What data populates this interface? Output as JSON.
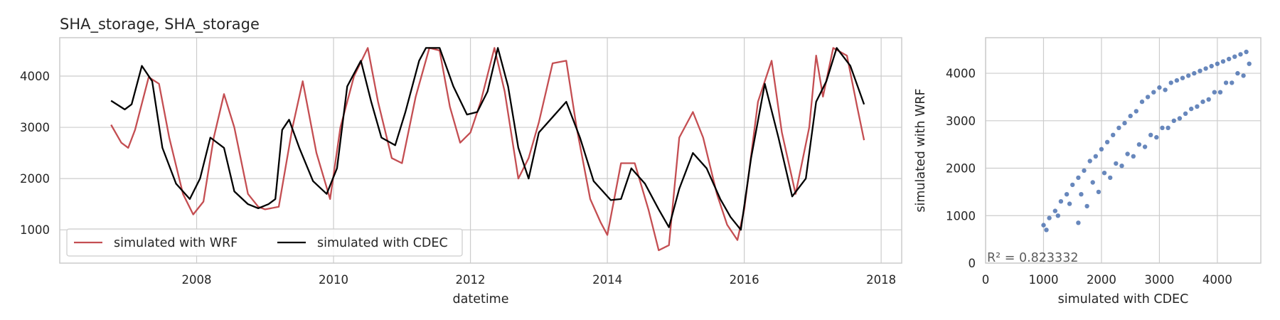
{
  "chart_data": [
    {
      "type": "line",
      "title": "SHA_storage, SHA_storage",
      "xlabel": "datetime",
      "ylabel": "",
      "xlim": [
        2006.0,
        2018.3
      ],
      "ylim": [
        350,
        4750
      ],
      "x_ticks": [
        2008,
        2010,
        2012,
        2014,
        2016,
        2018
      ],
      "y_ticks": [
        1000,
        2000,
        3000,
        4000
      ],
      "grid": true,
      "legend": {
        "location": "bottom-left",
        "entries": [
          "simulated with WRF",
          "simulated with CDEC"
        ]
      },
      "series": [
        {
          "name": "simulated with WRF",
          "color": "#c44e52",
          "x": [
            2006.75,
            2006.9,
            2007.0,
            2007.1,
            2007.3,
            2007.45,
            2007.6,
            2007.8,
            2007.95,
            2008.1,
            2008.25,
            2008.4,
            2008.55,
            2008.75,
            2008.9,
            2009.0,
            2009.2,
            2009.4,
            2009.55,
            2009.75,
            2009.95,
            2010.1,
            2010.3,
            2010.5,
            2010.65,
            2010.85,
            2011.0,
            2011.2,
            2011.4,
            2011.55,
            2011.7,
            2011.85,
            2012.0,
            2012.15,
            2012.35,
            2012.5,
            2012.7,
            2012.85,
            2013.0,
            2013.2,
            2013.4,
            2013.55,
            2013.75,
            2013.9,
            2014.0,
            2014.2,
            2014.4,
            2014.6,
            2014.75,
            2014.9,
            2015.05,
            2015.25,
            2015.4,
            2015.6,
            2015.75,
            2015.9,
            2016.0,
            2016.2,
            2016.4,
            2016.55,
            2016.75,
            2016.95,
            2017.05,
            2017.15,
            2017.3,
            2017.5,
            2017.65,
            2017.75
          ],
          "values": [
            3050,
            2700,
            2600,
            2950,
            3980,
            3850,
            2800,
            1700,
            1300,
            1550,
            2800,
            3650,
            3000,
            1700,
            1450,
            1400,
            1450,
            3000,
            3900,
            2500,
            1600,
            3000,
            4000,
            4550,
            3500,
            2400,
            2300,
            3600,
            4550,
            4500,
            3400,
            2700,
            2900,
            3500,
            4550,
            3700,
            2000,
            2400,
            3100,
            4250,
            4300,
            3000,
            1600,
            1150,
            900,
            2300,
            2300,
            1400,
            600,
            700,
            2800,
            3300,
            2800,
            1700,
            1100,
            800,
            1400,
            3500,
            4300,
            2900,
            1700,
            3000,
            4400,
            3600,
            4550,
            4400,
            3400,
            2750
          ]
        },
        {
          "name": "simulated with CDEC",
          "color": "#000000",
          "x": [
            2006.75,
            2006.95,
            2007.05,
            2007.2,
            2007.35,
            2007.5,
            2007.7,
            2007.9,
            2008.05,
            2008.2,
            2008.4,
            2008.55,
            2008.75,
            2008.9,
            2009.05,
            2009.15,
            2009.25,
            2009.35,
            2009.5,
            2009.7,
            2009.9,
            2010.05,
            2010.2,
            2010.4,
            2010.55,
            2010.7,
            2010.9,
            2011.05,
            2011.25,
            2011.35,
            2011.55,
            2011.75,
            2011.95,
            2012.1,
            2012.25,
            2012.4,
            2012.55,
            2012.7,
            2012.85,
            2013.0,
            2013.2,
            2013.4,
            2013.6,
            2013.8,
            2014.05,
            2014.2,
            2014.35,
            2014.55,
            2014.75,
            2014.9,
            2015.05,
            2015.25,
            2015.45,
            2015.65,
            2015.8,
            2015.95,
            2016.1,
            2016.3,
            2016.5,
            2016.7,
            2016.9,
            2017.05,
            2017.2,
            2017.35,
            2017.55,
            2017.75
          ],
          "values": [
            3520,
            3350,
            3450,
            4200,
            3900,
            2600,
            1900,
            1600,
            2000,
            2800,
            2600,
            1750,
            1500,
            1420,
            1500,
            1600,
            2950,
            3150,
            2600,
            1950,
            1700,
            2200,
            3800,
            4300,
            3500,
            2800,
            2650,
            3300,
            4300,
            4550,
            4550,
            3800,
            3250,
            3300,
            3700,
            4550,
            3800,
            2600,
            2000,
            2900,
            3200,
            3500,
            2800,
            1950,
            1580,
            1600,
            2200,
            1900,
            1400,
            1050,
            1800,
            2500,
            2200,
            1600,
            1250,
            1000,
            2400,
            3850,
            2800,
            1650,
            2000,
            3500,
            3900,
            4550,
            4200,
            3450
          ]
        }
      ]
    },
    {
      "type": "scatter",
      "title": "",
      "xlabel": "simulated with CDEC",
      "ylabel": "simulated with WRF",
      "xlim": [
        0,
        4750
      ],
      "ylim": [
        0,
        4750
      ],
      "x_ticks": [
        0,
        1000,
        2000,
        3000,
        4000
      ],
      "y_ticks": [
        0,
        1000,
        2000,
        3000,
        4000
      ],
      "grid": true,
      "color": "#4c72b0",
      "annotation": "R² = 0.823332",
      "x": [
        1000,
        1100,
        1200,
        1300,
        1400,
        1500,
        1600,
        1700,
        1800,
        1900,
        2000,
        2100,
        2200,
        2300,
        2400,
        2500,
        2600,
        2700,
        2800,
        2900,
        3000,
        3100,
        3200,
        3300,
        3400,
        3500,
        3600,
        3700,
        3800,
        3900,
        4000,
        4100,
        4200,
        4300,
        4400,
        4500,
        1050,
        1250,
        1450,
        1650,
        1850,
        2050,
        2250,
        2450,
        2650,
        2850,
        3050,
        3250,
        3450,
        3650,
        3850,
        4050,
        4250,
        4450,
        1600,
        1750,
        1950,
        2150,
        2350,
        2550,
        2750,
        2950,
        3150,
        3350,
        3550,
        3750,
        3950,
        4150,
        4350,
        4550
      ],
      "values": [
        800,
        950,
        1100,
        1300,
        1450,
        1650,
        1800,
        1950,
        2150,
        2250,
        2400,
        2550,
        2700,
        2850,
        2950,
        3100,
        3200,
        3400,
        3500,
        3600,
        3700,
        3650,
        3800,
        3850,
        3900,
        3950,
        4000,
        4050,
        4100,
        4150,
        4200,
        4250,
        4300,
        4350,
        4400,
        4450,
        700,
        1000,
        1250,
        1450,
        1700,
        1900,
        2100,
        2300,
        2500,
        2700,
        2850,
        3000,
        3150,
        3300,
        3450,
        3600,
        3800,
        3950,
        850,
        1200,
        1500,
        1800,
        2050,
        2250,
        2450,
        2650,
        2850,
        3050,
        3250,
        3400,
        3600,
        3800,
        4000,
        4200
      ]
    }
  ]
}
